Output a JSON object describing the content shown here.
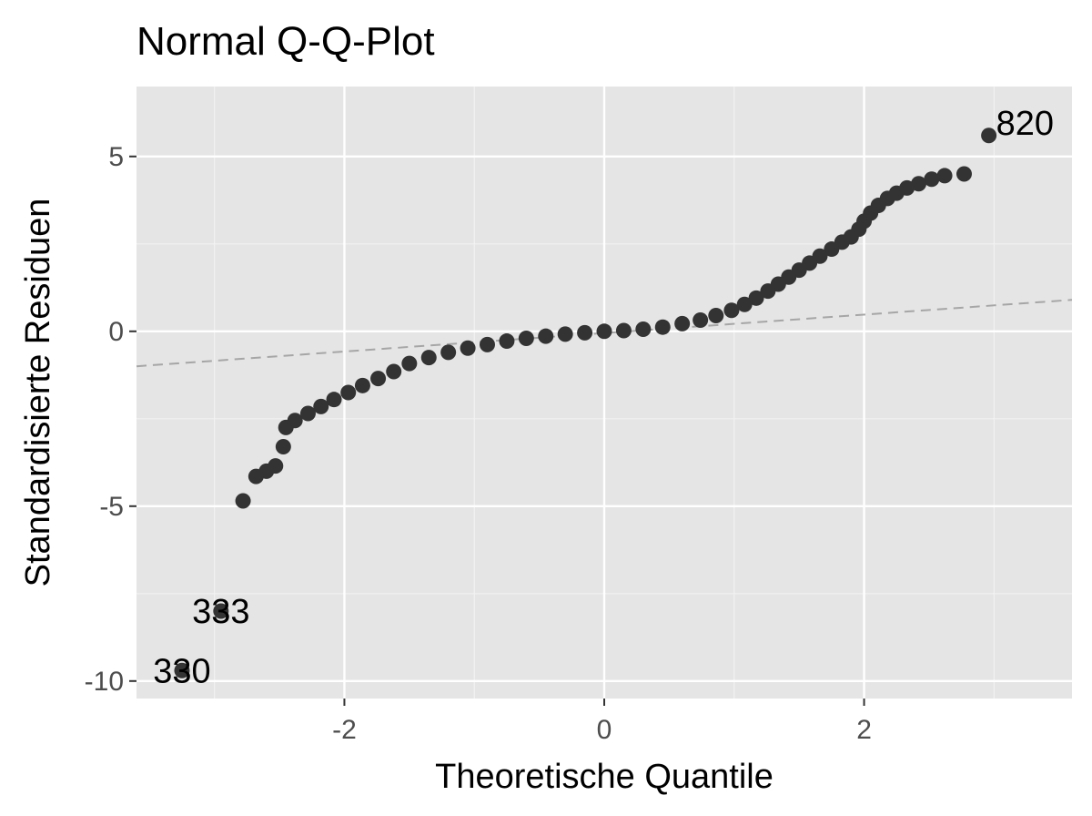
{
  "chart_data": {
    "type": "scatter",
    "title": "Normal Q-Q-Plot",
    "xlabel": "Theoretische Quantile",
    "ylabel": "Standardisierte Residuen",
    "xlim": [
      -3.6,
      3.6
    ],
    "ylim": [
      -10.5,
      7.0
    ],
    "x_ticks": [
      -2,
      0,
      2
    ],
    "x_tick_labels": [
      "-2",
      "0",
      "2"
    ],
    "y_ticks": [
      -10,
      -5,
      0,
      5
    ],
    "y_tick_labels": [
      "-10",
      "-5",
      "0",
      "5"
    ],
    "grid": true,
    "panel_background": "#e5e5e5",
    "point_color": "#333333",
    "reference_line": {
      "color": "#a6a6a6",
      "style": "dashed",
      "x": [
        -3.6,
        3.6
      ],
      "y": [
        -1.0,
        0.9
      ]
    },
    "labeled_points": [
      {
        "label": "820",
        "x": 2.96,
        "y": 5.6
      },
      {
        "label": "333",
        "x": -2.95,
        "y": -8.0
      },
      {
        "label": "330",
        "x": -3.25,
        "y": -9.7
      }
    ],
    "points": [
      [
        2.77,
        4.5
      ],
      [
        2.62,
        4.45
      ],
      [
        2.52,
        4.35
      ],
      [
        2.42,
        4.22
      ],
      [
        2.33,
        4.1
      ],
      [
        2.25,
        3.95
      ],
      [
        2.18,
        3.8
      ],
      [
        2.11,
        3.6
      ],
      [
        2.05,
        3.38
      ],
      [
        2.0,
        3.15
      ],
      [
        1.96,
        2.92
      ],
      [
        1.9,
        2.7
      ],
      [
        1.83,
        2.55
      ],
      [
        1.75,
        2.35
      ],
      [
        1.66,
        2.15
      ],
      [
        1.58,
        1.95
      ],
      [
        1.5,
        1.75
      ],
      [
        1.42,
        1.55
      ],
      [
        1.34,
        1.35
      ],
      [
        1.26,
        1.15
      ],
      [
        1.17,
        0.95
      ],
      [
        1.08,
        0.77
      ],
      [
        0.98,
        0.6
      ],
      [
        0.86,
        0.45
      ],
      [
        0.74,
        0.32
      ],
      [
        0.6,
        0.22
      ],
      [
        0.45,
        0.12
      ],
      [
        0.3,
        0.06
      ],
      [
        0.15,
        0.02
      ],
      [
        0.0,
        0.0
      ],
      [
        -0.15,
        -0.04
      ],
      [
        -0.3,
        -0.08
      ],
      [
        -0.45,
        -0.14
      ],
      [
        -0.6,
        -0.2
      ],
      [
        -0.75,
        -0.28
      ],
      [
        -0.9,
        -0.38
      ],
      [
        -1.05,
        -0.48
      ],
      [
        -1.2,
        -0.6
      ],
      [
        -1.35,
        -0.75
      ],
      [
        -1.5,
        -0.92
      ],
      [
        -1.62,
        -1.15
      ],
      [
        -1.74,
        -1.35
      ],
      [
        -1.86,
        -1.55
      ],
      [
        -1.97,
        -1.75
      ],
      [
        -2.08,
        -1.95
      ],
      [
        -2.18,
        -2.15
      ],
      [
        -2.28,
        -2.35
      ],
      [
        -2.38,
        -2.55
      ],
      [
        -2.45,
        -2.75
      ],
      [
        -2.47,
        -3.3
      ],
      [
        -2.53,
        -3.85
      ],
      [
        -2.6,
        -4.0
      ],
      [
        -2.68,
        -4.15
      ],
      [
        -2.78,
        -4.85
      ]
    ]
  }
}
